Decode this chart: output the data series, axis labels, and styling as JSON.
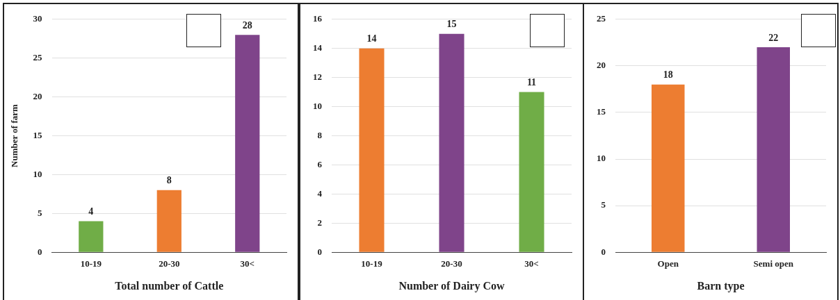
{
  "chart_data": [
    {
      "type": "bar",
      "categories": [
        "10-19",
        "20-30",
        "30<"
      ],
      "values": [
        4,
        8,
        28
      ],
      "colors": [
        "#70ad47",
        "#ed7d31",
        "#7f448a"
      ],
      "xlabel": "Total number of Cattle",
      "ylabel": "Number of farm",
      "ylim": [
        0,
        30
      ],
      "yticks": [
        0,
        5,
        10,
        15,
        20,
        25,
        30
      ],
      "grid": "y",
      "data_labels": true
    },
    {
      "type": "bar",
      "categories": [
        "10-19",
        "20-30",
        "30<"
      ],
      "values": [
        14,
        15,
        11
      ],
      "colors": [
        "#ed7d31",
        "#7f448a",
        "#70ad47"
      ],
      "xlabel": "Number of Dairy Cow",
      "ylim": [
        0,
        16
      ],
      "yticks": [
        0,
        2,
        4,
        6,
        8,
        10,
        12,
        14,
        16
      ],
      "grid": "y",
      "data_labels": true
    },
    {
      "type": "bar",
      "categories": [
        "Open",
        "Semi open"
      ],
      "values": [
        18,
        22
      ],
      "colors": [
        "#ed7d31",
        "#7f448a"
      ],
      "xlabel": "Barn type",
      "ylim": [
        0,
        25
      ],
      "yticks": [
        0,
        5,
        10,
        15,
        20,
        25
      ],
      "grid": "y",
      "data_labels": true
    }
  ]
}
